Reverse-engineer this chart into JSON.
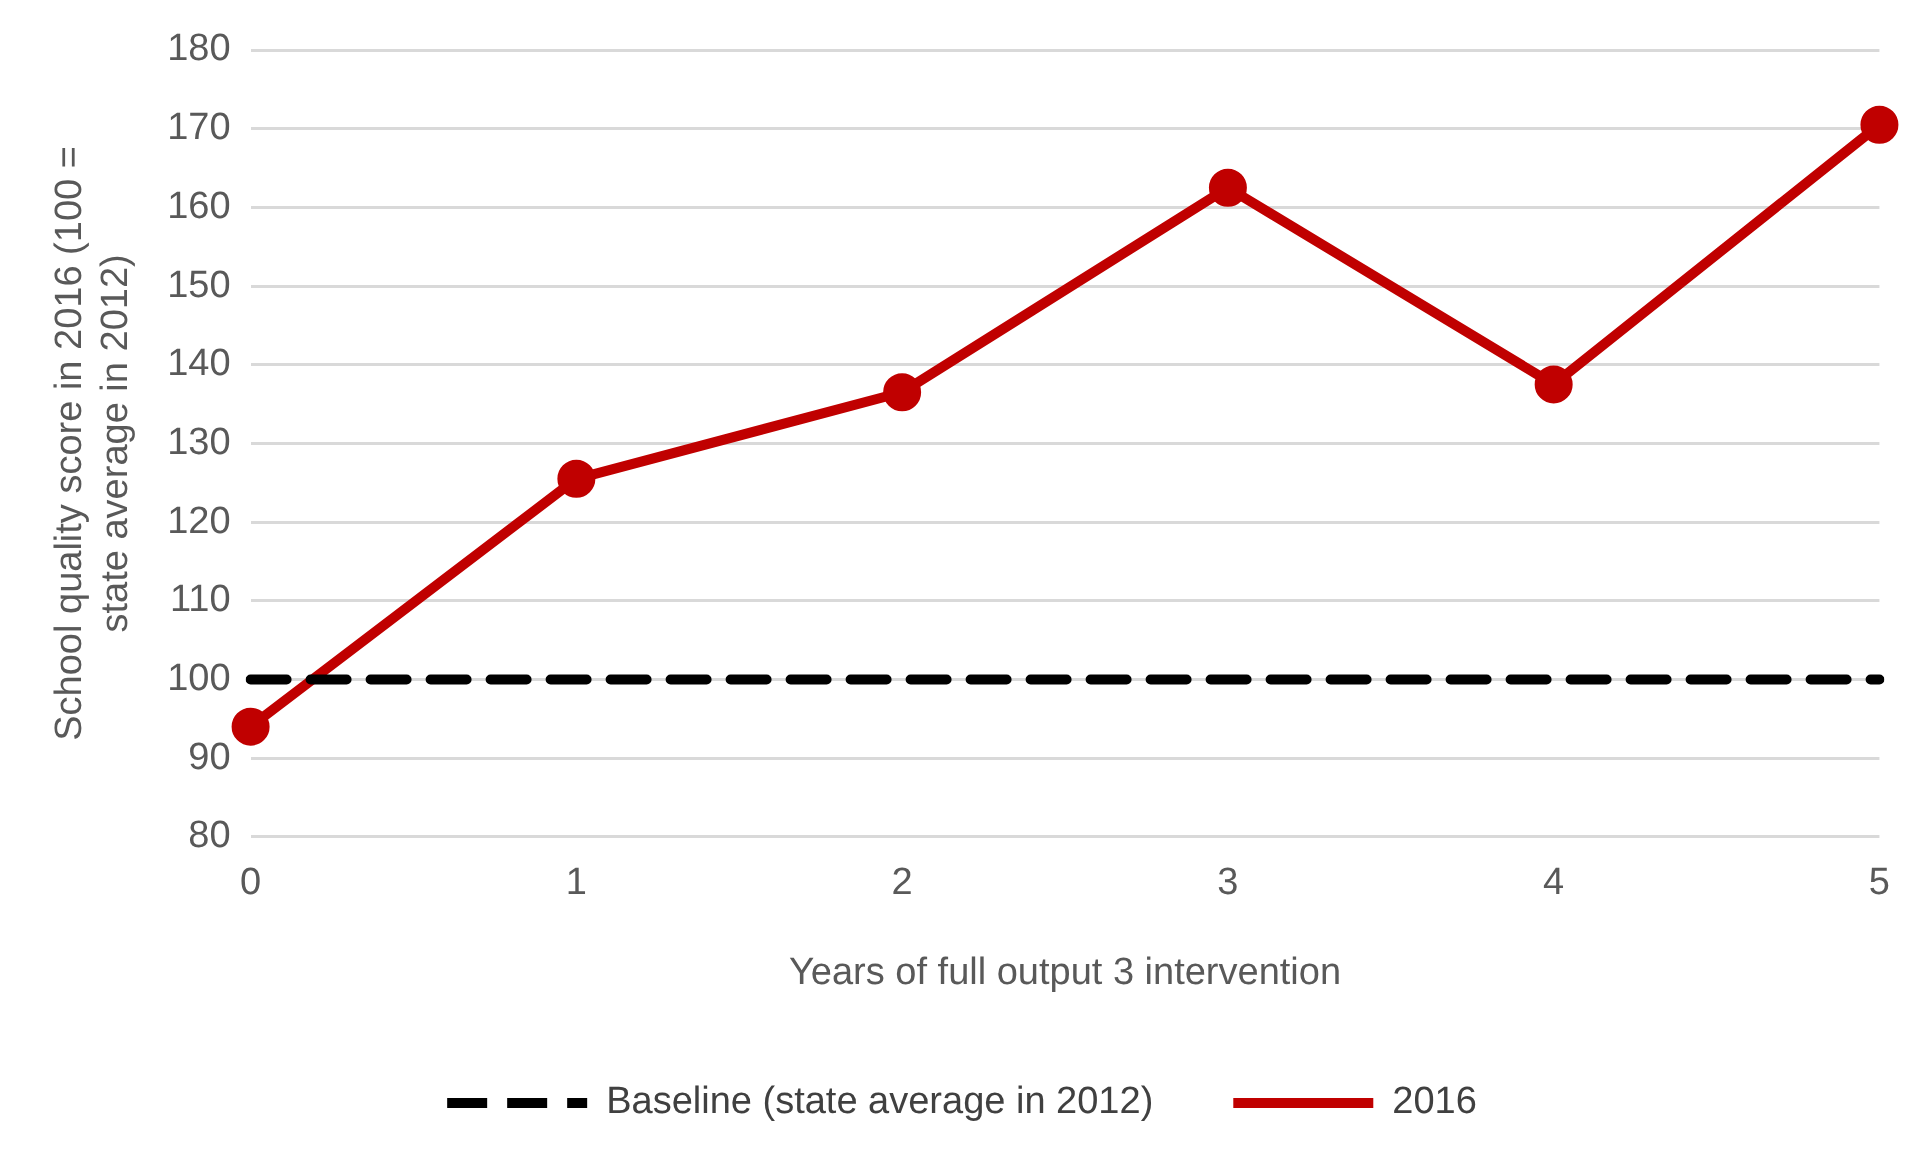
{
  "chart_data": {
    "type": "line",
    "xlabel": "Years of full output 3 intervention",
    "ylabel": "School quality score in 2016 (100 = state average in 2012)",
    "categories": [
      "0",
      "1",
      "2",
      "3",
      "4",
      "5"
    ],
    "series": [
      {
        "name": "Baseline (state average in 2012)",
        "color": "#000000",
        "values": [
          100,
          100,
          100,
          100,
          100,
          100
        ],
        "line_style": "dashed",
        "marker": "none"
      },
      {
        "name": "2016",
        "color": "#c00000",
        "values": [
          94,
          125.5,
          136.5,
          162.5,
          137.5,
          170.5
        ],
        "line_style": "solid",
        "marker": "circle"
      }
    ],
    "ylim": [
      80,
      180
    ],
    "yticks": [
      80,
      90,
      100,
      110,
      120,
      130,
      140,
      150,
      160,
      170,
      180
    ],
    "grid": "y",
    "legend": "bottom"
  }
}
